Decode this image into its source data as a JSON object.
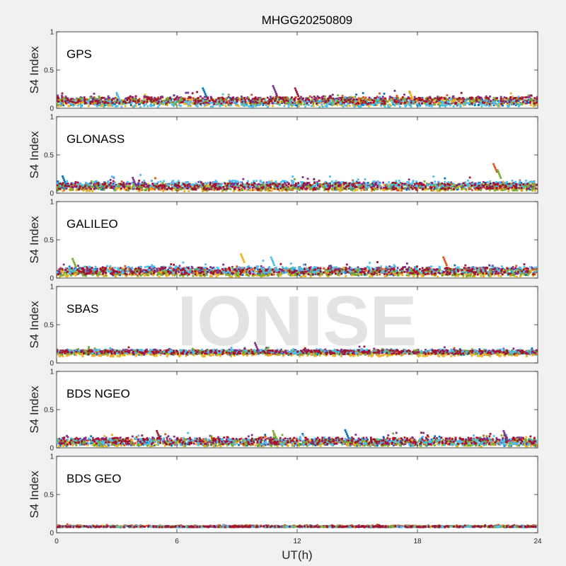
{
  "chart_data": {
    "type": "scatter",
    "title": "MHGG20250809",
    "xlabel": "UT(h)",
    "ylabel": "S4 Index",
    "xlim": [
      0,
      24
    ],
    "ylim": [
      0,
      1
    ],
    "xticks": [
      "0",
      "6",
      "12",
      "18",
      "24"
    ],
    "yticks": [
      "0",
      "0.5",
      "1"
    ],
    "watermark": "IONISE",
    "grid": false,
    "colors": [
      "#0072bd",
      "#d95319",
      "#edb120",
      "#7e2f8e",
      "#77ac30",
      "#4dbeee",
      "#a2142f"
    ],
    "panels": [
      {
        "name": "GPS",
        "series_baseline": [
          0.08,
          0.1,
          0.07,
          0.11,
          0.09,
          0.06,
          0.1
        ],
        "notable_points": [
          {
            "x": 7.3,
            "y": 0.26
          },
          {
            "x": 10.8,
            "y": 0.29
          },
          {
            "x": 11.9,
            "y": 0.26
          },
          {
            "x": 17.6,
            "y": 0.22
          },
          {
            "x": 3.0,
            "y": 0.2
          }
        ]
      },
      {
        "name": "GLONASS",
        "series_baseline": [
          0.09,
          0.08,
          0.07,
          0.1,
          0.08,
          0.12,
          0.09
        ],
        "notable_points": [
          {
            "x": 21.8,
            "y": 0.38
          },
          {
            "x": 22.0,
            "y": 0.3
          },
          {
            "x": 0.3,
            "y": 0.22
          },
          {
            "x": 3.8,
            "y": 0.2
          }
        ]
      },
      {
        "name": "GALILEO",
        "series_baseline": [
          0.08,
          0.09,
          0.06,
          0.1,
          0.07,
          0.11,
          0.09
        ],
        "notable_points": [
          {
            "x": 9.2,
            "y": 0.31
          },
          {
            "x": 10.7,
            "y": 0.27
          },
          {
            "x": 19.3,
            "y": 0.27
          },
          {
            "x": 0.8,
            "y": 0.25
          }
        ]
      },
      {
        "name": "SBAS",
        "series_baseline": [
          0.13,
          0.14,
          0.11,
          0.15,
          0.14,
          0.15,
          0.14
        ],
        "notable_points": [
          {
            "x": 9.9,
            "y": 0.26
          }
        ]
      },
      {
        "name": "BDS NGEO",
        "series_baseline": [
          0.07,
          0.08,
          0.06,
          0.09,
          0.07,
          0.08,
          0.09
        ],
        "notable_points": [
          {
            "x": 10.8,
            "y": 0.22
          },
          {
            "x": 14.4,
            "y": 0.23
          },
          {
            "x": 22.3,
            "y": 0.22
          },
          {
            "x": 5.0,
            "y": 0.22
          }
        ]
      },
      {
        "name": "BDS GEO",
        "series_baseline": [
          0.08,
          0.09,
          0.08,
          0.08,
          0.08,
          0.08,
          0.08
        ],
        "notable_points": []
      }
    ]
  }
}
